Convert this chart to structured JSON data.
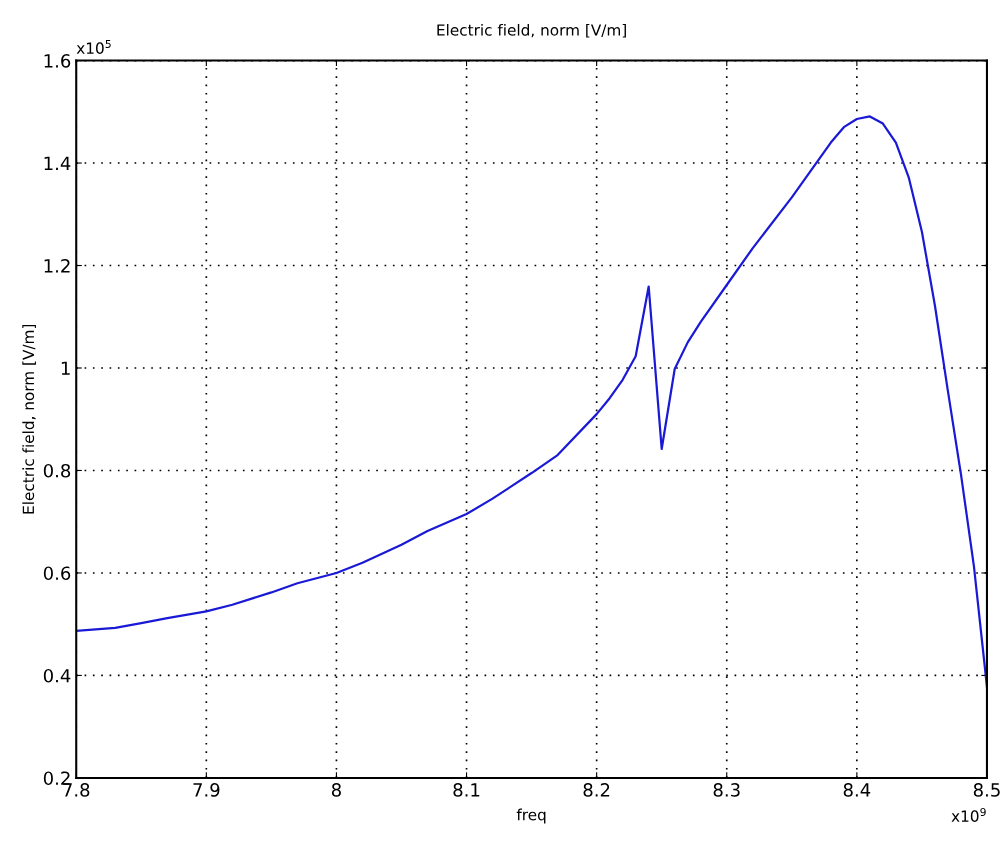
{
  "chart_data": {
    "type": "line",
    "title": "Electric field, norm [V/m]",
    "xlabel": "freq",
    "ylabel": "Electric field, norm [V/m]",
    "annotations": [
      "x10$^{5}$",
      "x10$^{9}$"
    ],
    "x": [
      7.8,
      7.83,
      7.85,
      7.87,
      7.9,
      7.92,
      7.95,
      7.97,
      8.0,
      8.02,
      8.05,
      8.07,
      8.1,
      8.12,
      8.15,
      8.17,
      8.2,
      8.21,
      8.22,
      8.23,
      8.24,
      8.25,
      8.26,
      8.27,
      8.28,
      8.3,
      8.32,
      8.35,
      8.38,
      8.39,
      8.4,
      8.41,
      8.42,
      8.43,
      8.44,
      8.45,
      8.46,
      8.47,
      8.48,
      8.49,
      8.5
    ],
    "series": [
      {
        "color": "#1a1ad6",
        "values": [
          0.487,
          0.493,
          0.502,
          0.512,
          0.525,
          0.538,
          0.562,
          0.58,
          0.6,
          0.62,
          0.655,
          0.682,
          0.715,
          0.745,
          0.795,
          0.83,
          0.91,
          0.941,
          0.977,
          1.023,
          1.159,
          0.842,
          0.998,
          1.05,
          1.09,
          1.162,
          1.234,
          1.333,
          1.44,
          1.47,
          1.486,
          1.491,
          1.477,
          1.44,
          1.371,
          1.266,
          1.122,
          0.955,
          0.793,
          0.613,
          0.378
        ]
      }
    ],
    "xlim": [
      7.8,
      8.5
    ],
    "ylim": [
      0.2,
      1.6
    ],
    "xticks": [
      7.8,
      7.9,
      8,
      8.1,
      8.2,
      8.3,
      8.4,
      8.5
    ],
    "yticks": [
      0.2,
      0.4,
      0.6,
      0.8,
      1,
      1.2,
      1.4,
      1.6
    ],
    "grid": true,
    "marker": "none",
    "line_style": "solid"
  }
}
